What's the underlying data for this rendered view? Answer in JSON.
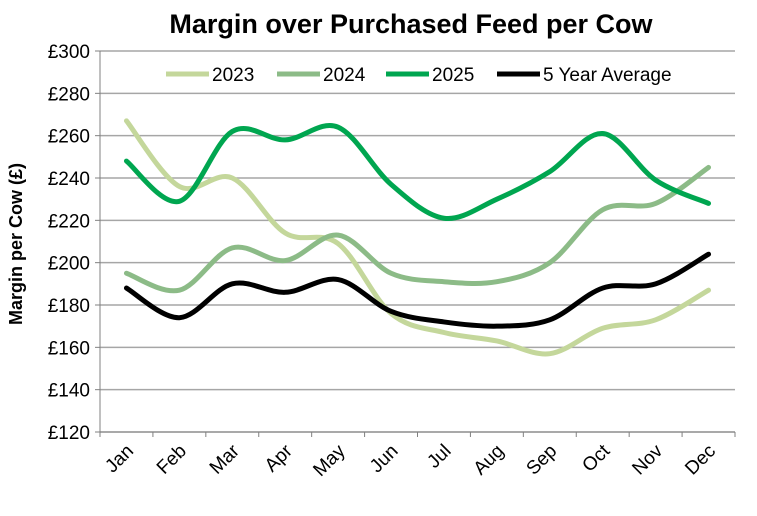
{
  "chart_data": {
    "type": "line",
    "title": "Margin over Purchased Feed per Cow",
    "xlabel": "",
    "ylabel": "Margin per Cow (£)",
    "categories": [
      "Jan",
      "Feb",
      "Mar",
      "Apr",
      "May",
      "Jun",
      "Jul",
      "Aug",
      "Sep",
      "Oct",
      "Nov",
      "Dec"
    ],
    "ylim": [
      120,
      300
    ],
    "yticks": [
      120,
      140,
      160,
      180,
      200,
      220,
      240,
      260,
      280,
      300
    ],
    "ytick_labels": [
      "£120",
      "£140",
      "£160",
      "£180",
      "£200",
      "£220",
      "£240",
      "£260",
      "£280",
      "£300"
    ],
    "grid": true,
    "legend_position": "top",
    "smooth": true,
    "series": [
      {
        "name": "2023",
        "color": "#c4d79b",
        "values": [
          267,
          236,
          240,
          214,
          209,
          176,
          167,
          163,
          157,
          169,
          173,
          187
        ]
      },
      {
        "name": "2024",
        "color": "#8cbb87",
        "values": [
          195,
          187,
          207,
          201,
          213,
          195,
          191,
          191,
          200,
          225,
          228,
          245
        ]
      },
      {
        "name": "2025",
        "color": "#00a650",
        "values": [
          248,
          229,
          262,
          258,
          264,
          237,
          221,
          230,
          243,
          261,
          239,
          228
        ]
      },
      {
        "name": "5 Year Average",
        "color": "#000000",
        "values": [
          188,
          174,
          190,
          186,
          192,
          177,
          172,
          170,
          173,
          188,
          190,
          204
        ]
      }
    ]
  }
}
